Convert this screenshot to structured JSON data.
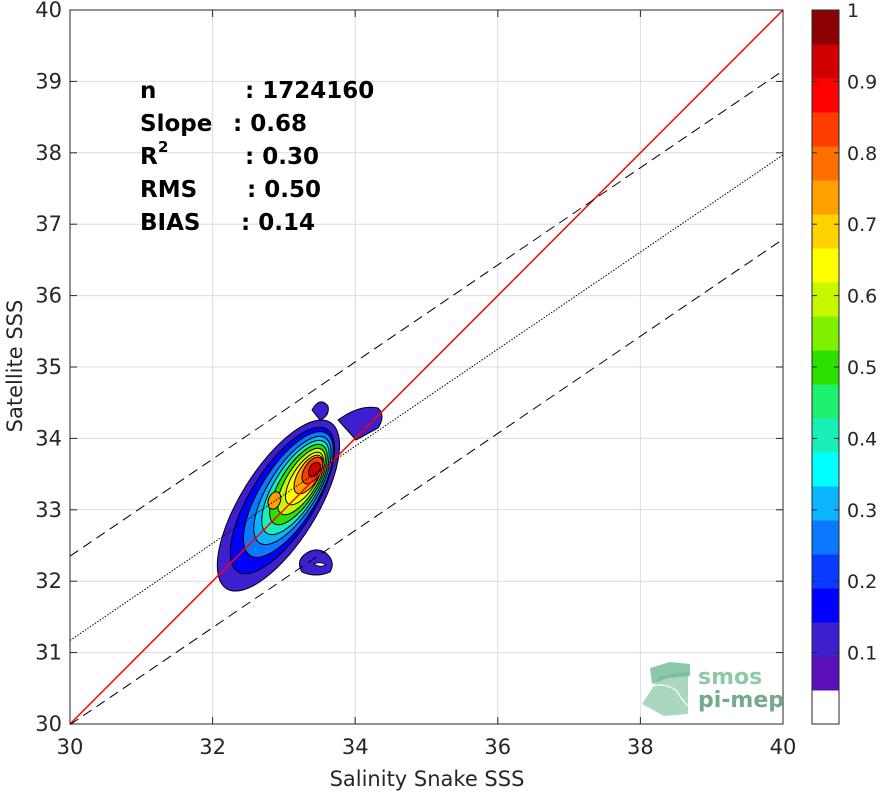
{
  "chart_data": {
    "type": "contour",
    "xlabel": "Salinity Snake SSS",
    "ylabel": "Satellite SSS",
    "xlim": [
      30,
      40
    ],
    "ylim": [
      30,
      40
    ],
    "xticks": [
      30,
      32,
      34,
      36,
      38,
      40
    ],
    "yticks": [
      30,
      31,
      32,
      33,
      34,
      35,
      36,
      37,
      38,
      39,
      40
    ],
    "grid": true,
    "stats": [
      {
        "label": "n",
        "value": ": 1724160"
      },
      {
        "label": "Slope",
        "value": ": 0.68"
      },
      {
        "label": "R",
        "sup": "2",
        "value": ": 0.30"
      },
      {
        "label": "RMS",
        "value": ": 0.50"
      },
      {
        "label": "BIAS",
        "value": ": 0.14"
      }
    ],
    "lines": [
      {
        "name": "identity",
        "style": "solid",
        "color": "#ff0000",
        "points": [
          [
            30,
            30
          ],
          [
            40,
            40
          ]
        ]
      },
      {
        "name": "regression",
        "style": "dotted",
        "color": "#000000",
        "points": [
          [
            30,
            31.17
          ],
          [
            40,
            37.97
          ]
        ]
      },
      {
        "name": "upper-bound",
        "style": "dashed",
        "color": "#000000",
        "points": [
          [
            30,
            32.35
          ],
          [
            40,
            39.15
          ]
        ]
      },
      {
        "name": "lower-bound",
        "style": "dashed",
        "color": "#000000",
        "points": [
          [
            30,
            29.99
          ],
          [
            40,
            36.79
          ]
        ]
      }
    ],
    "density_center": [
      33.4,
      33.55
    ],
    "contour_levels": [
      0.05,
      0.1,
      0.2,
      0.3,
      0.4,
      0.5,
      0.6,
      0.7,
      0.8,
      0.9
    ],
    "colorbar": {
      "min": 0,
      "max": 1,
      "ticks": [
        "0.1",
        "0.2",
        "0.3",
        "0.4",
        "0.5",
        "0.6",
        "0.7",
        "0.8",
        "0.9",
        "1"
      ],
      "colors": [
        "#ffffff",
        "#5b0fb8",
        "#3d1fd0",
        "#0000ff",
        "#0a3cff",
        "#0a78ff",
        "#0ab4ff",
        "#00ffff",
        "#18f0b8",
        "#1ef070",
        "#2ee000",
        "#7ef000",
        "#c8f800",
        "#ffff00",
        "#ffd200",
        "#ffa000",
        "#ff6e00",
        "#ff3c00",
        "#ff0000",
        "#d00000",
        "#8b0000"
      ]
    }
  },
  "watermark": {
    "line1": "smos",
    "line2": "pi-mep"
  }
}
